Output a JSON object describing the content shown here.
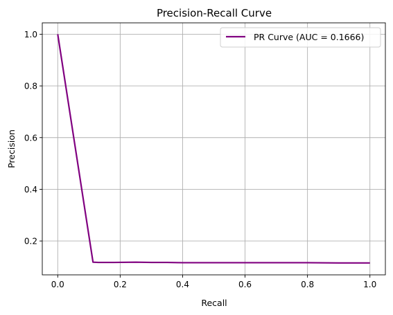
{
  "chart_data": {
    "type": "line",
    "title": "Precision-Recall Curve",
    "xlabel": "Recall",
    "ylabel": "Precision",
    "xlim": [
      -0.0495,
      1.0495
    ],
    "ylim": [
      0.069,
      1.044
    ],
    "xticks": [
      0.0,
      0.2,
      0.4,
      0.6,
      0.8,
      1.0
    ],
    "xtick_labels": [
      "0.0",
      "0.2",
      "0.4",
      "0.6",
      "0.8",
      "1.0"
    ],
    "yticks": [
      0.2,
      0.4,
      0.6,
      0.8,
      1.0
    ],
    "ytick_labels": [
      "0.2",
      "0.4",
      "0.6",
      "0.8",
      "1.0"
    ],
    "grid": true,
    "legend_position": "top-right",
    "series": [
      {
        "name": "PR Curve (AUC = 0.1666)",
        "color": "#800080",
        "x": [
          0.0,
          0.113,
          0.13,
          0.18,
          0.25,
          0.3,
          0.35,
          0.4,
          0.5,
          0.6,
          0.7,
          0.8,
          0.9,
          1.0
        ],
        "y": [
          1.0,
          0.118,
          0.117,
          0.117,
          0.118,
          0.117,
          0.117,
          0.116,
          0.116,
          0.116,
          0.116,
          0.116,
          0.115,
          0.115
        ]
      }
    ]
  }
}
